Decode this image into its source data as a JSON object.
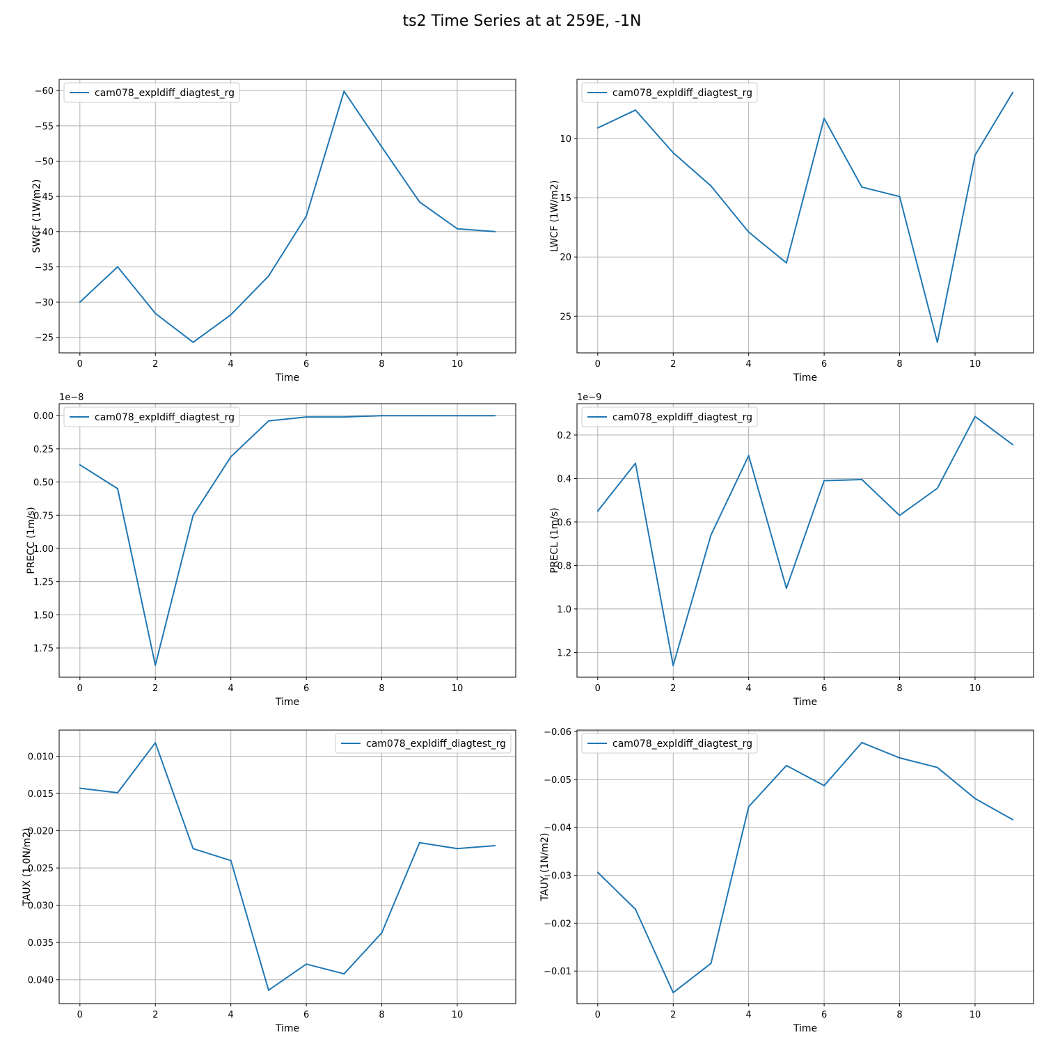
{
  "figure": {
    "suptitle": "ts2 Time Series at at 259E, -1N",
    "line_color": "#1f77b4",
    "grid_color": "#b0b0b0"
  },
  "chart_data": [
    {
      "type": "line",
      "xlabel": "Time",
      "ylabel": "SWCF (1W/m2)",
      "y_inverted": true,
      "grid": true,
      "legend_position": "upper-left",
      "x_ticks": [
        0,
        2,
        4,
        6,
        8,
        10
      ],
      "y_ticks": [
        -60,
        -55,
        -50,
        -45,
        -40,
        -35,
        -30,
        -25
      ],
      "y_tick_labels": [
        "−60",
        "−55",
        "−50",
        "−45",
        "−40",
        "−35",
        "−30",
        "−25"
      ],
      "xlim": [
        -0.55,
        11.55
      ],
      "ylim": [
        -22.8,
        -61.6
      ],
      "offset_text": "",
      "series": [
        {
          "name": "cam078_expldiff_diagtest_rg",
          "x": [
            0,
            1,
            2,
            3,
            4,
            5,
            6,
            7,
            8,
            9,
            10,
            11
          ],
          "y": [
            -30.0,
            -35.0,
            -28.4,
            -24.3,
            -28.2,
            -33.7,
            -42.2,
            -59.9,
            -52.0,
            -44.2,
            -40.4,
            -40.0
          ]
        }
      ]
    },
    {
      "type": "line",
      "xlabel": "Time",
      "ylabel": "LWCF (1W/m2)",
      "y_inverted": true,
      "grid": true,
      "legend_position": "upper-left",
      "x_ticks": [
        0,
        2,
        4,
        6,
        8,
        10
      ],
      "y_ticks": [
        10,
        15,
        20,
        25
      ],
      "y_tick_labels": [
        "10",
        "15",
        "20",
        "25"
      ],
      "xlim": [
        -0.55,
        11.55
      ],
      "ylim": [
        28.1,
        5.0
      ],
      "offset_text": "",
      "series": [
        {
          "name": "cam078_expldiff_diagtest_rg",
          "x": [
            0,
            1,
            2,
            3,
            4,
            5,
            6,
            7,
            8,
            9,
            10,
            11
          ],
          "y": [
            9.1,
            7.6,
            11.2,
            14.0,
            17.9,
            20.5,
            8.3,
            14.1,
            14.9,
            27.2,
            11.4,
            6.1
          ]
        }
      ]
    },
    {
      "type": "line",
      "xlabel": "Time",
      "ylabel": "PRECC (1m/s)",
      "y_inverted": true,
      "grid": true,
      "legend_position": "upper-left",
      "x_ticks": [
        0,
        2,
        4,
        6,
        8,
        10
      ],
      "y_ticks": [
        0.0,
        0.25,
        0.5,
        0.75,
        1.0,
        1.25,
        1.5,
        1.75
      ],
      "y_tick_labels": [
        "0.00",
        "0.25",
        "0.50",
        "0.75",
        "1.00",
        "1.25",
        "1.50",
        "1.75"
      ],
      "xlim": [
        -0.55,
        11.55
      ],
      "ylim": [
        1.97,
        -0.09
      ],
      "offset_text": "1e−8",
      "series": [
        {
          "name": "cam078_expldiff_diagtest_rg",
          "x": [
            0,
            1,
            2,
            3,
            4,
            5,
            6,
            7,
            8,
            9,
            10,
            11
          ],
          "y": [
            0.37,
            0.55,
            1.88,
            0.75,
            0.31,
            0.04,
            0.01,
            0.01,
            0.0,
            0.0,
            0.0,
            0.0
          ]
        }
      ]
    },
    {
      "type": "line",
      "xlabel": "Time",
      "ylabel": "PRECL (1m/s)",
      "y_inverted": true,
      "grid": true,
      "legend_position": "upper-left",
      "x_ticks": [
        0,
        2,
        4,
        6,
        8,
        10
      ],
      "y_ticks": [
        0.2,
        0.4,
        0.6,
        0.8,
        1.0,
        1.2
      ],
      "y_tick_labels": [
        "0.2",
        "0.4",
        "0.6",
        "0.8",
        "1.0",
        "1.2"
      ],
      "xlim": [
        -0.55,
        11.55
      ],
      "ylim": [
        1.314,
        0.056
      ],
      "offset_text": "1e−9",
      "series": [
        {
          "name": "cam078_expldiff_diagtest_rg",
          "x": [
            0,
            1,
            2,
            3,
            4,
            5,
            6,
            7,
            8,
            9,
            10,
            11
          ],
          "y": [
            0.55,
            0.33,
            1.26,
            0.66,
            0.295,
            0.905,
            0.41,
            0.405,
            0.57,
            0.445,
            0.115,
            0.245
          ]
        }
      ]
    },
    {
      "type": "line",
      "xlabel": "Time",
      "ylabel": "TAUX (1.0N/m2)",
      "y_inverted": true,
      "grid": true,
      "legend_position": "upper-right",
      "x_ticks": [
        0,
        2,
        4,
        6,
        8,
        10
      ],
      "y_ticks": [
        0.01,
        0.015,
        0.02,
        0.025,
        0.03,
        0.035,
        0.04
      ],
      "y_tick_labels": [
        "0.010",
        "0.015",
        "0.020",
        "0.025",
        "0.030",
        "0.035",
        "0.040"
      ],
      "xlim": [
        -0.55,
        11.55
      ],
      "ylim": [
        0.0432,
        0.0065
      ],
      "offset_text": "",
      "series": [
        {
          "name": "cam078_expldiff_diagtest_rg",
          "x": [
            0,
            1,
            2,
            3,
            4,
            5,
            6,
            7,
            8,
            9,
            10,
            11
          ],
          "y": [
            0.0143,
            0.0149,
            0.0082,
            0.0224,
            0.024,
            0.0414,
            0.0379,
            0.0392,
            0.0337,
            0.0216,
            0.0224,
            0.022
          ]
        }
      ]
    },
    {
      "type": "line",
      "xlabel": "Time",
      "ylabel": "TAUY (1N/m2)",
      "y_inverted": true,
      "grid": true,
      "legend_position": "upper-left",
      "x_ticks": [
        0,
        2,
        4,
        6,
        8,
        10
      ],
      "y_ticks": [
        -0.06,
        -0.05,
        -0.04,
        -0.03,
        -0.02,
        -0.01
      ],
      "y_tick_labels": [
        "−0.06",
        "−0.05",
        "−0.04",
        "−0.03",
        "−0.02",
        "−0.01"
      ],
      "xlim": [
        -0.55,
        11.55
      ],
      "ylim": [
        -0.0032,
        -0.0603
      ],
      "offset_text": "",
      "series": [
        {
          "name": "cam078_expldiff_diagtest_rg",
          "x": [
            0,
            1,
            2,
            3,
            4,
            5,
            6,
            7,
            8,
            9,
            10,
            11
          ],
          "y": [
            -0.0306,
            -0.0229,
            -0.0055,
            -0.0116,
            -0.0443,
            -0.0529,
            -0.0487,
            -0.0577,
            -0.0545,
            -0.0525,
            -0.046,
            -0.0416
          ]
        }
      ]
    }
  ]
}
